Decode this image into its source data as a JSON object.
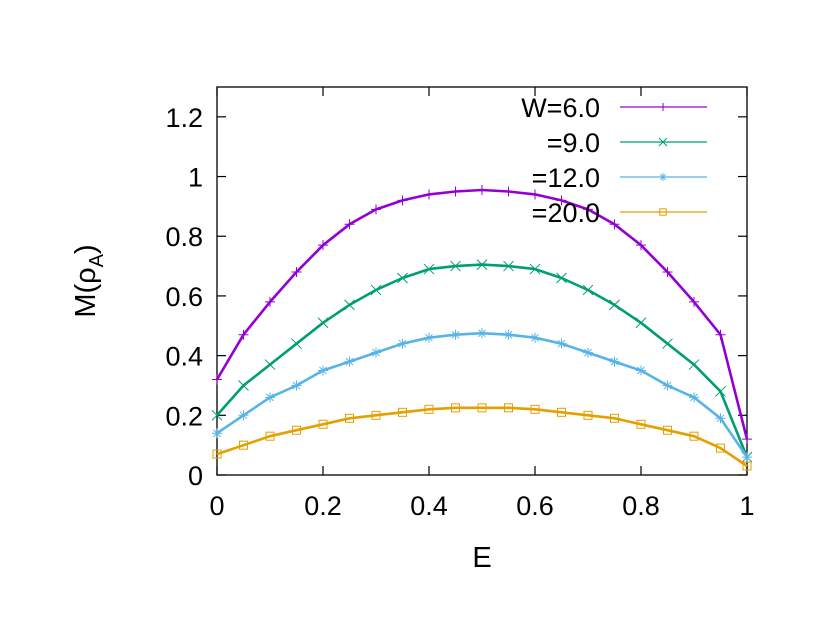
{
  "chart_data": {
    "type": "line",
    "title": "",
    "xlabel": "E",
    "ylabel_main": "M(ρ",
    "ylabel_sub": "A",
    "ylabel_close": ")",
    "xlim": [
      0,
      1
    ],
    "ylim": [
      0,
      1.3
    ],
    "xticks": [
      0,
      0.2,
      0.4,
      0.6,
      0.8,
      1
    ],
    "xtick_labels": [
      "0",
      "0.2",
      "0.4",
      "0.6",
      "0.8",
      "1"
    ],
    "yticks": [
      0,
      0.2,
      0.4,
      0.6,
      0.8,
      1,
      1.2
    ],
    "ytick_labels": [
      "0",
      "0.2",
      "0.4",
      "0.6",
      "0.8",
      "1",
      "1.2"
    ],
    "grid": false,
    "legend_position": "top-right",
    "series": [
      {
        "name": "W=6.0",
        "color": "#9400d3",
        "marker": "plus",
        "x": [
          0,
          0.05,
          0.1,
          0.15,
          0.2,
          0.25,
          0.3,
          0.35,
          0.4,
          0.45,
          0.5,
          0.55,
          0.6,
          0.65,
          0.7,
          0.75,
          0.8,
          0.85,
          0.9,
          0.95,
          1
        ],
        "y": [
          0.32,
          0.47,
          0.58,
          0.68,
          0.77,
          0.84,
          0.89,
          0.92,
          0.94,
          0.95,
          0.955,
          0.95,
          0.94,
          0.92,
          0.89,
          0.84,
          0.77,
          0.68,
          0.58,
          0.47,
          0.12
        ]
      },
      {
        "name": "=9.0",
        "color": "#009e73",
        "marker": "cross",
        "x": [
          0,
          0.05,
          0.1,
          0.15,
          0.2,
          0.25,
          0.3,
          0.35,
          0.4,
          0.45,
          0.5,
          0.55,
          0.6,
          0.65,
          0.7,
          0.75,
          0.8,
          0.85,
          0.9,
          0.95,
          1
        ],
        "y": [
          0.2,
          0.3,
          0.37,
          0.44,
          0.51,
          0.57,
          0.62,
          0.66,
          0.69,
          0.7,
          0.705,
          0.7,
          0.69,
          0.66,
          0.62,
          0.57,
          0.51,
          0.44,
          0.37,
          0.28,
          0.06
        ]
      },
      {
        "name": "=12.0",
        "color": "#56b4e9",
        "marker": "star",
        "x": [
          0,
          0.05,
          0.1,
          0.15,
          0.2,
          0.25,
          0.3,
          0.35,
          0.4,
          0.45,
          0.5,
          0.55,
          0.6,
          0.65,
          0.7,
          0.75,
          0.8,
          0.85,
          0.9,
          0.95,
          1
        ],
        "y": [
          0.14,
          0.2,
          0.26,
          0.3,
          0.35,
          0.38,
          0.41,
          0.44,
          0.46,
          0.47,
          0.475,
          0.47,
          0.46,
          0.44,
          0.41,
          0.38,
          0.35,
          0.3,
          0.26,
          0.19,
          0.06
        ]
      },
      {
        "name": "=20.0",
        "color": "#e69f00",
        "marker": "square",
        "x": [
          0,
          0.05,
          0.1,
          0.15,
          0.2,
          0.25,
          0.3,
          0.35,
          0.4,
          0.45,
          0.5,
          0.55,
          0.6,
          0.65,
          0.7,
          0.75,
          0.8,
          0.85,
          0.9,
          0.95,
          1
        ],
        "y": [
          0.07,
          0.1,
          0.13,
          0.15,
          0.17,
          0.19,
          0.2,
          0.21,
          0.22,
          0.225,
          0.225,
          0.225,
          0.22,
          0.21,
          0.2,
          0.19,
          0.17,
          0.15,
          0.13,
          0.09,
          0.03
        ]
      }
    ]
  }
}
